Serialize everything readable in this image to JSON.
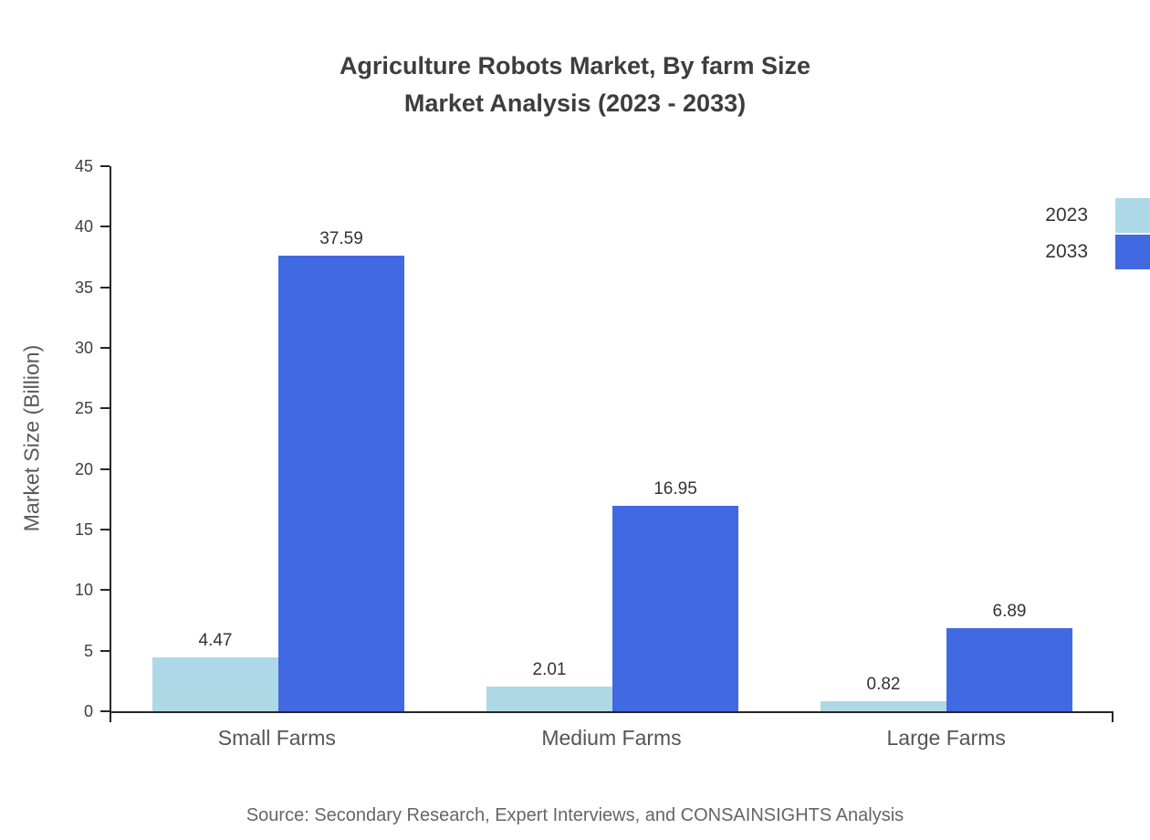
{
  "title": {
    "line1": "Agriculture Robots Market, By farm Size",
    "line2": "Market Analysis (2023 - 2033)"
  },
  "source": "Source: Secondary Research, Expert Interviews, and CONSAINSIGHTS Analysis",
  "legend": [
    {
      "label": "2023",
      "color": "#ADD8E6"
    },
    {
      "label": "2033",
      "color": "#4169E1"
    }
  ],
  "chart_data": {
    "type": "bar",
    "categories": [
      "Small Farms",
      "Medium Farms",
      "Large Farms"
    ],
    "series": [
      {
        "name": "2023",
        "color": "#ADD8E6",
        "values": [
          4.47,
          2.01,
          0.82
        ]
      },
      {
        "name": "2033",
        "color": "#4169E1",
        "values": [
          37.59,
          16.95,
          6.89
        ]
      }
    ],
    "title": "Agriculture Robots Market, By farm Size Market Analysis (2023 - 2033)",
    "xlabel": "",
    "ylabel": "Market Size (Billion)",
    "ylim": [
      0,
      45
    ],
    "ytick_step": 5,
    "grid": false,
    "legend_position": "top-right"
  }
}
